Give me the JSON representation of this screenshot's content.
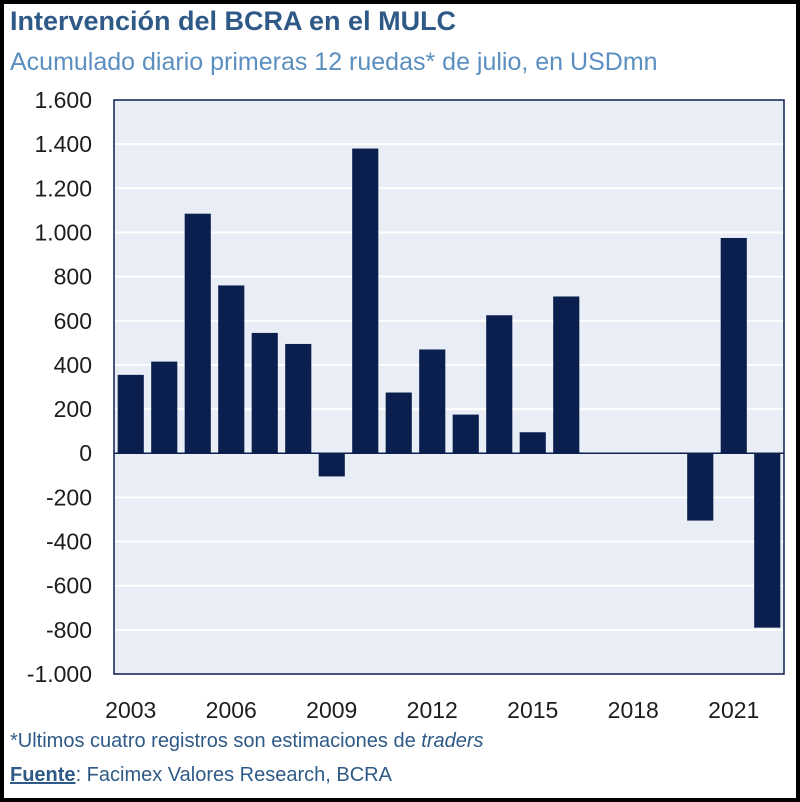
{
  "chart_data": {
    "type": "bar",
    "title": "Intervención del BCRA en el MULC",
    "subtitle": "Acumulado diario primeras 12 ruedas* de julio, en USDmn",
    "categories": [
      "2003",
      "2004",
      "2005",
      "2006",
      "2007",
      "2008",
      "2009",
      "2010",
      "2011",
      "2012",
      "2013",
      "2014",
      "2015",
      "2016",
      "2017",
      "2018",
      "2019",
      "2020",
      "2021",
      "2022"
    ],
    "values": [
      355,
      415,
      1085,
      760,
      545,
      495,
      -105,
      1380,
      275,
      470,
      175,
      625,
      95,
      710,
      0,
      0,
      0,
      -305,
      975,
      -790
    ],
    "x_tick_labels": [
      {
        "category": "2003",
        "label": "2003"
      },
      {
        "category": "2006",
        "label": "2006"
      },
      {
        "category": "2009",
        "label": "2009"
      },
      {
        "category": "2012",
        "label": "2012"
      },
      {
        "category": "2015",
        "label": "2015"
      },
      {
        "category": "2018",
        "label": "2018"
      },
      {
        "category": "2021",
        "label": "2021"
      }
    ],
    "y_ticks": [
      1600,
      1400,
      1200,
      1000,
      800,
      600,
      400,
      200,
      0,
      -200,
      -400,
      -600,
      -800,
      -1000
    ],
    "y_tick_labels": [
      "1.600",
      "1.400",
      "1.200",
      "1.000",
      "800",
      "600",
      "400",
      "200",
      "0",
      "-200",
      "-400",
      "-600",
      "-800",
      "-1.000"
    ],
    "ylim": [
      -1000,
      1600
    ],
    "xlabel": "",
    "ylabel": "",
    "grid": true,
    "bar_color": "#0a1f4e",
    "plot_background": "#e9edf5",
    "grid_color": "#ffffff"
  },
  "footer": {
    "note_prefix": "*Ultimos cuatro registros son estimaciones de ",
    "note_italic": "traders",
    "source_label": "Fuente",
    "source_text": ": Facimex Valores Research, BCRA"
  },
  "colors": {
    "title": "#2f5a87",
    "subtitle": "#5b8fc0"
  }
}
